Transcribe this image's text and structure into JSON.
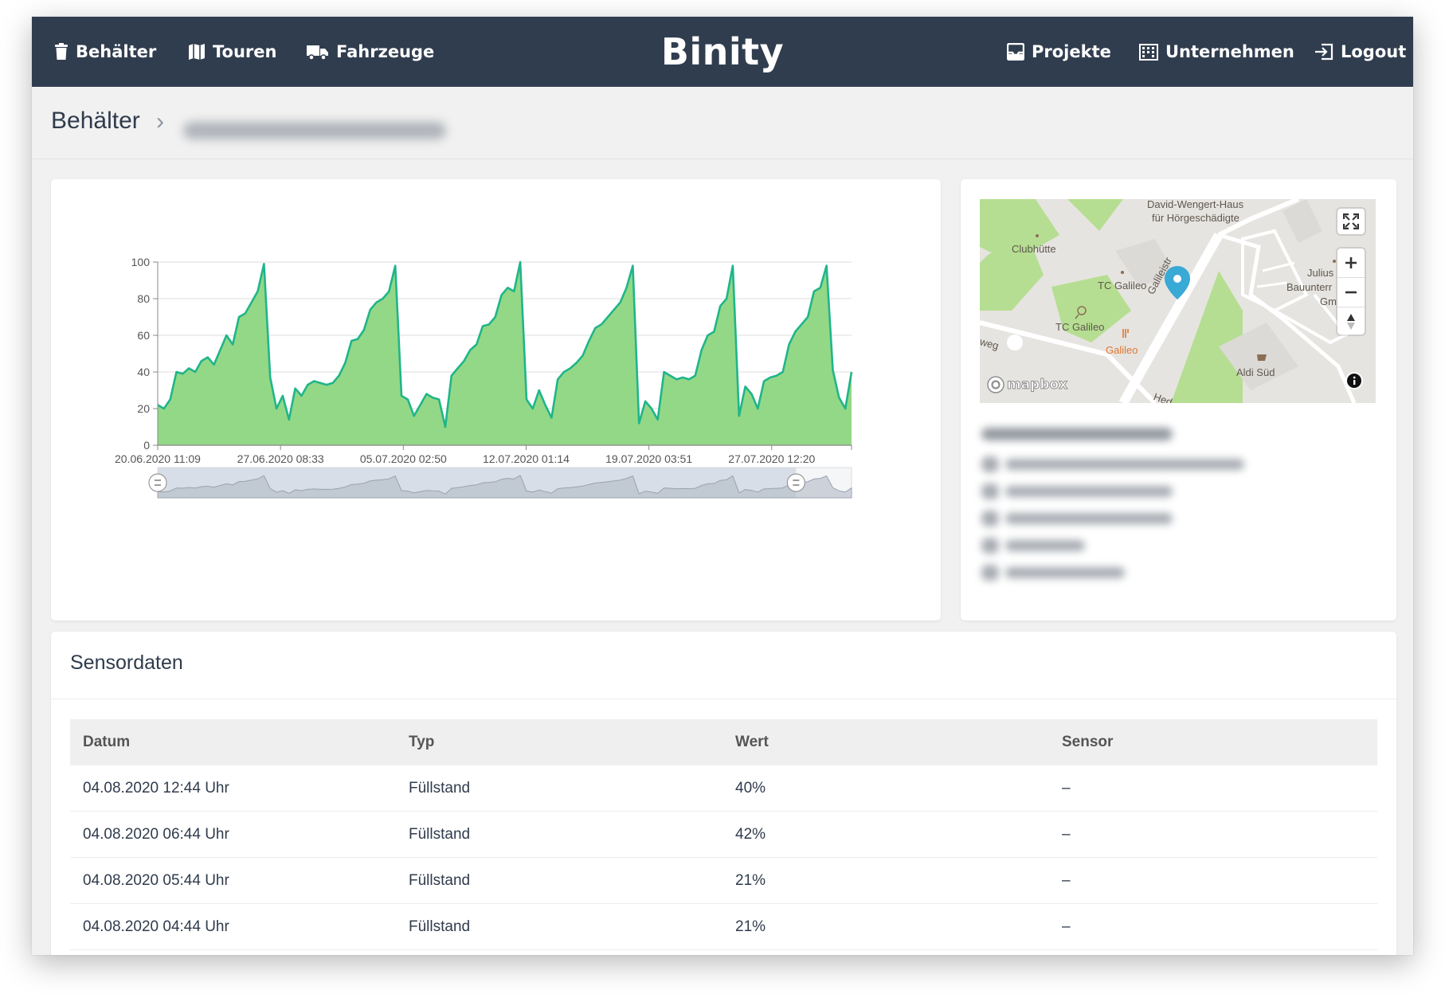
{
  "nav": {
    "left": [
      {
        "label": "Behälter",
        "icon": "trash-icon"
      },
      {
        "label": "Touren",
        "icon": "map-icon"
      },
      {
        "label": "Fahrzeuge",
        "icon": "truck-icon"
      }
    ],
    "brand": "Binity",
    "right": [
      {
        "label": "Projekte",
        "icon": "inbox-icon"
      },
      {
        "label": "Unternehmen",
        "icon": "building-icon"
      },
      {
        "label": "Logout",
        "icon": "logout-icon"
      }
    ]
  },
  "breadcrumb": {
    "root": "Behälter",
    "separator": "›"
  },
  "chart_data": {
    "type": "area",
    "title": "",
    "xlabel": "",
    "ylabel": "",
    "ylim": [
      0,
      100
    ],
    "yticks": [
      0,
      20,
      40,
      60,
      80,
      100
    ],
    "xticks": [
      "20.06.2020 11:09",
      "27.06.2020 08:33",
      "05.07.2020 02:50",
      "12.07.2020 01:14",
      "19.07.2020 03:51",
      "27.07.2020 12:20"
    ],
    "grid": true,
    "color": "#20b58a",
    "fill": "#8dd67f",
    "y": [
      22,
      20,
      25,
      40,
      39,
      42,
      40,
      46,
      48,
      44,
      52,
      60,
      55,
      70,
      72,
      78,
      84,
      99,
      37,
      20,
      27,
      14,
      31,
      27,
      33,
      35,
      34,
      33,
      34,
      38,
      45,
      57,
      58,
      63,
      74,
      78,
      80,
      84,
      98,
      27,
      25,
      16,
      22,
      28,
      26,
      25,
      10,
      38,
      42,
      46,
      52,
      55,
      65,
      66,
      70,
      82,
      86,
      84,
      100,
      25,
      20,
      30,
      22,
      15,
      36,
      40,
      42,
      45,
      49,
      57,
      64,
      66,
      70,
      74,
      78,
      86,
      98,
      12,
      24,
      20,
      14,
      40,
      38,
      36,
      37,
      36,
      38,
      52,
      60,
      62,
      76,
      80,
      98,
      16,
      32,
      28,
      20,
      35,
      37,
      38,
      40,
      55,
      62,
      66,
      70,
      84,
      86,
      98,
      41,
      26,
      20,
      40
    ],
    "navigator": {
      "range": [
        0,
        0.92
      ]
    }
  },
  "map": {
    "labels": {
      "top": "David-Wengert-Haus",
      "top2": "für Hörgeschädigte",
      "clubhuette": "Clubhütte",
      "tc1": "TC Galileo",
      "tc2": "TC Galileo",
      "galileo": "Galileo",
      "street": "Galileistr",
      "julius": "Julius",
      "bauunter": "Bauunterr",
      "gm": "Gm",
      "aldi": "Aldi Süd",
      "weg": "weg",
      "hed": "Hed",
      "mapbox": "mapbox"
    },
    "colors": {
      "park": "#b6de92",
      "road": "#ffffff",
      "base": "#e6e4e0",
      "pin": "#39a9d6",
      "poi": "#e0762e"
    }
  },
  "sensor": {
    "title": "Sensordaten",
    "columns": [
      "Datum",
      "Typ",
      "Wert",
      "Sensor"
    ],
    "rows": [
      [
        "04.08.2020 12:44 Uhr",
        "Füllstand",
        "40%",
        "–"
      ],
      [
        "04.08.2020 06:44 Uhr",
        "Füllstand",
        "42%",
        "–"
      ],
      [
        "04.08.2020 05:44 Uhr",
        "Füllstand",
        "21%",
        "–"
      ],
      [
        "04.08.2020 04:44 Uhr",
        "Füllstand",
        "21%",
        "–"
      ]
    ]
  }
}
